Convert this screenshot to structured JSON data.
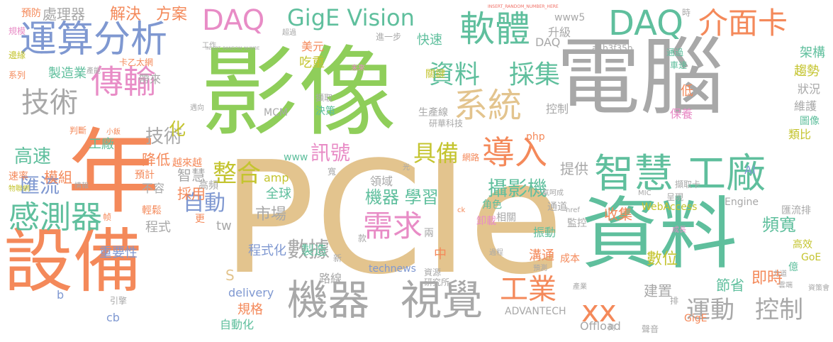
{
  "palette": {
    "green": "#8fce5a",
    "gray": "#a8a8a8",
    "orange": "#f4895a",
    "teal": "#5fbf9d",
    "pink": "#e88cc6",
    "tan": "#e3c48e",
    "blue": "#7f98d1",
    "yellow": "#c4c42f",
    "red": "#f06e64"
  },
  "words": [
    {
      "text": "電腦",
      "color": "gray"
    },
    {
      "text": "影像",
      "color": "green"
    },
    {
      "text": "PCIe",
      "color": "tan"
    },
    {
      "text": "年",
      "color": "orange"
    },
    {
      "text": "資料",
      "color": "teal"
    },
    {
      "text": "設備",
      "color": "orange"
    },
    {
      "text": "運算分析",
      "color": "blue"
    },
    {
      "text": "DAQ",
      "color": "pink"
    },
    {
      "text": "GigE Vision",
      "color": "teal"
    },
    {
      "text": "軟體",
      "color": "teal"
    },
    {
      "text": "DAQ",
      "color": "teal"
    },
    {
      "text": "介面卡",
      "color": "orange"
    },
    {
      "text": "傳輸",
      "color": "pink"
    },
    {
      "text": "資料",
      "color": "teal"
    },
    {
      "text": "採集",
      "color": "teal"
    },
    {
      "text": "系統",
      "color": "tan"
    },
    {
      "text": "技術",
      "color": "gray"
    },
    {
      "text": "智慧",
      "color": "teal"
    },
    {
      "text": "工廠",
      "color": "teal"
    },
    {
      "text": "導入",
      "color": "orange"
    },
    {
      "text": "感測器",
      "color": "teal"
    },
    {
      "text": "機器",
      "color": "gray"
    },
    {
      "text": "視覺",
      "color": "gray"
    },
    {
      "text": "需求",
      "color": "pink"
    },
    {
      "text": "工業",
      "color": "orange"
    },
    {
      "text": "運動",
      "color": "gray"
    },
    {
      "text": "控制",
      "color": "gray"
    },
    {
      "text": "整合",
      "color": "yellow"
    },
    {
      "text": "訊號",
      "color": "pink"
    },
    {
      "text": "具備",
      "color": "yellow"
    },
    {
      "text": "攝影機",
      "color": "teal"
    },
    {
      "text": "數據",
      "color": "gray"
    },
    {
      "text": "自動",
      "color": "blue"
    },
    {
      "text": "機器 學習",
      "color": "teal"
    },
    {
      "text": "高速",
      "color": "teal"
    },
    {
      "text": "匯流",
      "color": "blue"
    },
    {
      "text": "處理器",
      "color": "gray"
    },
    {
      "text": "解決",
      "color": "orange"
    },
    {
      "text": "方案",
      "color": "orange"
    },
    {
      "text": "建置",
      "color": "gray"
    },
    {
      "text": "即時",
      "color": "orange"
    },
    {
      "text": "節省",
      "color": "teal"
    },
    {
      "text": "數位",
      "color": "yellow"
    },
    {
      "text": "頻寬",
      "color": "teal"
    },
    {
      "text": "市場",
      "color": "gray"
    },
    {
      "text": "全球",
      "color": "teal"
    },
    {
      "text": "技術",
      "color": "gray"
    },
    {
      "text": "程式化",
      "color": "blue"
    },
    {
      "text": "製造",
      "color": "teal"
    },
    {
      "text": "重要性",
      "color": "blue"
    },
    {
      "text": "化",
      "color": "yellow"
    },
    {
      "text": "模組",
      "color": "orange"
    },
    {
      "text": "降低",
      "color": "orange"
    },
    {
      "text": "工廠",
      "color": "teal"
    },
    {
      "text": "智慧",
      "color": "gray"
    },
    {
      "text": "採用",
      "color": "orange"
    },
    {
      "text": "提供",
      "color": "gray"
    },
    {
      "text": "收集",
      "color": "orange"
    },
    {
      "text": "製造業",
      "color": "teal"
    },
    {
      "text": "帶來",
      "color": "gray"
    },
    {
      "text": "快速",
      "color": "teal"
    },
    {
      "text": "升級",
      "color": "gray"
    },
    {
      "text": "美元",
      "color": "orange"
    },
    {
      "text": "吃重",
      "color": "yellow"
    },
    {
      "text": "架構",
      "color": "teal"
    },
    {
      "text": "趨勢",
      "color": "yellow"
    },
    {
      "text": "狀況",
      "color": "gray"
    },
    {
      "text": "低",
      "color": "orange"
    },
    {
      "text": "維護",
      "color": "gray"
    },
    {
      "text": "圖像",
      "color": "teal"
    },
    {
      "text": "保養",
      "color": "pink"
    },
    {
      "text": "類比",
      "color": "yellow"
    },
    {
      "text": "溝通",
      "color": "orange"
    },
    {
      "text": "中",
      "color": "orange"
    },
    {
      "text": "路線",
      "color": "gray"
    },
    {
      "text": "規格",
      "color": "orange"
    },
    {
      "text": "自動化",
      "color": "teal"
    },
    {
      "text": "不容",
      "color": "gray"
    },
    {
      "text": "程式",
      "color": "gray"
    },
    {
      "text": "預計",
      "color": "orange"
    },
    {
      "text": "越來越",
      "color": "orange"
    },
    {
      "text": "領域",
      "color": "gray"
    },
    {
      "text": "生產線",
      "color": "gray"
    },
    {
      "text": "控制",
      "color": "gray"
    },
    {
      "text": "決策",
      "color": "teal"
    },
    {
      "text": "關鍵",
      "color": "yellow"
    },
    {
      "text": "角色",
      "color": "teal"
    },
    {
      "text": "相關",
      "color": "gray"
    },
    {
      "text": "卸載",
      "color": "pink"
    },
    {
      "text": "振動",
      "color": "teal"
    },
    {
      "text": "監控",
      "color": "gray"
    },
    {
      "text": "匯流排",
      "color": "gray"
    },
    {
      "text": "高效",
      "color": "yellow"
    },
    {
      "text": "億",
      "color": "teal"
    },
    {
      "text": "成本",
      "color": "orange"
    },
    {
      "text": "www5",
      "color": "gray"
    },
    {
      "text": "DAQ",
      "color": "gray"
    },
    {
      "text": "amp",
      "color": "yellow"
    },
    {
      "text": "tw",
      "color": "gray"
    },
    {
      "text": "www",
      "color": "teal"
    },
    {
      "text": "php",
      "color": "orange"
    },
    {
      "text": "MCM",
      "color": "gray"
    },
    {
      "text": "delivery",
      "color": "blue"
    },
    {
      "text": "technews",
      "color": "blue"
    },
    {
      "text": "ADVANTECH",
      "color": "gray"
    },
    {
      "text": "Offload",
      "color": "gray"
    },
    {
      "text": "WebAccess",
      "color": "yellow"
    },
    {
      "text": "Engine",
      "color": "gray"
    },
    {
      "text": "AI",
      "color": "blue"
    },
    {
      "text": "GoE",
      "color": "yellow"
    },
    {
      "text": "GigE",
      "color": "orange"
    },
    {
      "text": "a4b3f35b",
      "color": "gray"
    },
    {
      "text": "cb",
      "color": "blue"
    },
    {
      "text": "b",
      "color": "blue"
    },
    {
      "text": "S",
      "color": "tan"
    },
    {
      "text": "xx",
      "color": "orange"
    },
    {
      "text": "更",
      "color": "orange"
    },
    {
      "text": "兩",
      "color": "gray"
    },
    {
      "text": "款",
      "color": "gray"
    },
    {
      "text": "新",
      "color": "gray"
    },
    {
      "text": "寬",
      "color": "gray"
    },
    {
      "text": "預防",
      "color": "orange"
    },
    {
      "text": "規模",
      "color": "pink"
    },
    {
      "text": "邊緣",
      "color": "yellow"
    },
    {
      "text": "系列",
      "color": "orange"
    },
    {
      "text": "速率",
      "color": "orange"
    },
    {
      "text": "判斷",
      "color": "orange"
    },
    {
      "text": "物聯網",
      "color": "yellow"
    },
    {
      "text": "情報",
      "color": "gray"
    },
    {
      "text": "輕鬆",
      "color": "orange"
    },
    {
      "text": "引擎",
      "color": "gray"
    },
    {
      "text": "高頻",
      "color": "gray"
    },
    {
      "text": "資源",
      "color": "gray"
    },
    {
      "text": "研究所",
      "color": "gray"
    },
    {
      "text": "研華科技",
      "color": "gray"
    },
    {
      "text": "網路",
      "color": "orange"
    },
    {
      "text": "擷取",
      "color": "gray"
    },
    {
      "text": "擷取卡",
      "color": "gray"
    },
    {
      "text": "呈現",
      "color": "gray"
    },
    {
      "text": "通道",
      "color": "gray"
    },
    {
      "text": "時",
      "color": "gray"
    },
    {
      "text": "通過",
      "color": "teal"
    },
    {
      "text": "車速",
      "color": "teal"
    },
    {
      "text": "進一步",
      "color": "gray"
    },
    {
      "text": "超過",
      "color": "gray"
    },
    {
      "text": "乙太網",
      "color": "orange"
    },
    {
      "text": "卡",
      "color": "orange"
    },
    {
      "text": "產能",
      "color": "gray"
    },
    {
      "text": "未來",
      "color": "pink"
    },
    {
      "text": "工作",
      "color": "gray"
    },
    {
      "text": "一氣呵成",
      "color": "gray"
    },
    {
      "text": "成長",
      "color": "pink"
    },
    {
      "text": "過程",
      "color": "gray"
    },
    {
      "text": "預測",
      "color": "gray"
    },
    {
      "text": "產業",
      "color": "gray"
    },
    {
      "text": "力道",
      "color": "gray"
    },
    {
      "text": "雲端",
      "color": "gray"
    },
    {
      "text": "資策會",
      "color": "gray"
    },
    {
      "text": "聲音",
      "color": "gray"
    },
    {
      "text": "排",
      "color": "gray"
    },
    {
      "text": "夠",
      "color": "gray"
    },
    {
      "text": "光",
      "color": "gray"
    },
    {
      "text": "ck",
      "color": "orange"
    },
    {
      "text": "href",
      "color": "gray"
    },
    {
      "text": "MIC",
      "color": "gray"
    },
    {
      "text": "帧",
      "color": "orange"
    },
    {
      "text": "小飯",
      "color": "orange"
    },
    {
      "text": "遇向",
      "color": "gray"
    },
    {
      "text": "INSERT_RANDOM_NUMBER_HERE",
      "color": "red"
    },
    {
      "text": "INSERT_RANDOM_NUMBE",
      "color": "gray"
    }
  ]
}
